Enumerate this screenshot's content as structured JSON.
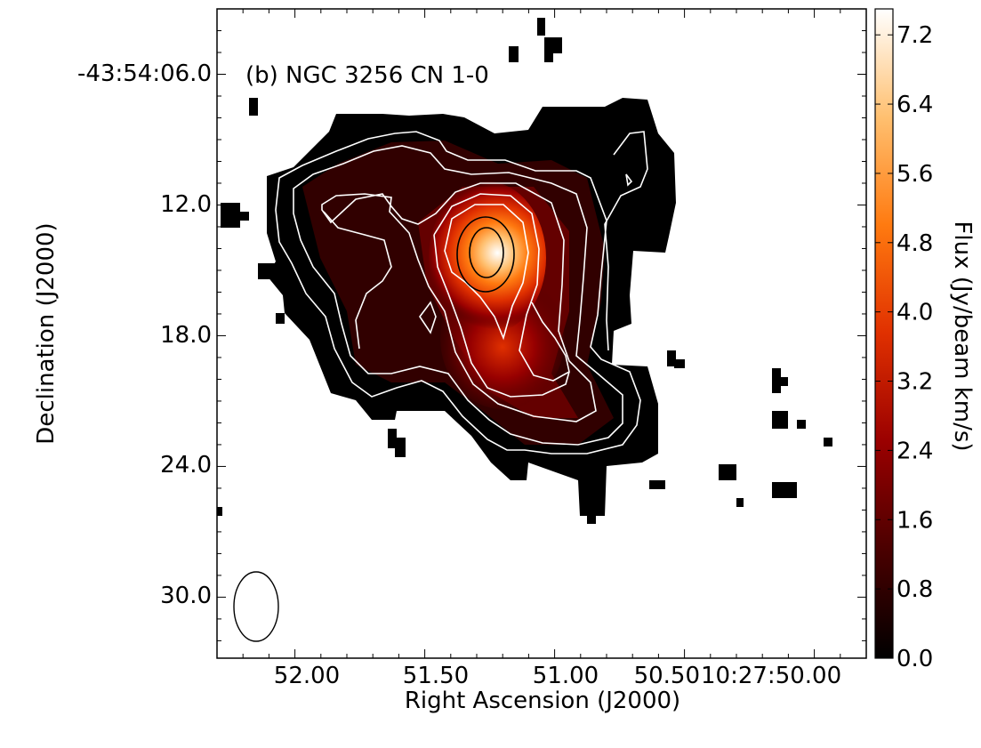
{
  "chart_data": {
    "type": "heatmap",
    "title": "(b) NGC 3256 CN 1-0",
    "xlabel": "Right Ascension (J2000)",
    "ylabel": "Declination (J2000)",
    "x_tick_labels": [
      "52.00",
      "51.50",
      "51.00",
      "50.50",
      "10:27:50.00"
    ],
    "y_tick_labels": [
      "-43:54:06.0",
      "12.0",
      "18.0",
      "24.0",
      "30.0"
    ],
    "xlim_seconds_of_RA": [
      52.3,
      49.8
    ],
    "ylim_arcsec_offset": [
      32.8,
      3.0
    ],
    "x_tick_values": [
      52.0,
      51.5,
      51.0,
      50.5,
      50.0
    ],
    "y_tick_values": [
      6.0,
      12.0,
      18.0,
      24.0,
      30.0
    ],
    "colorbar": {
      "label": "Flux (Jy/beam km/s)",
      "range": [
        0.0,
        7.5
      ],
      "tick_labels": [
        "0.0",
        "0.8",
        "1.6",
        "2.4",
        "3.2",
        "4.0",
        "4.8",
        "5.6",
        "6.4",
        "7.2"
      ],
      "tick_values": [
        0.0,
        0.8,
        1.6,
        2.4,
        3.2,
        4.0,
        4.8,
        5.6,
        6.4,
        7.2
      ],
      "colormap": "gist_heat",
      "colors": [
        "#000000",
        "#4a0000",
        "#9a0000",
        "#e03000",
        "#ff7a10",
        "#ffc070",
        "#ffffff"
      ]
    },
    "peak": {
      "ra_sec": 51.22,
      "dec_offset": 14.2,
      "flux": 7.5
    },
    "beam": {
      "ra_sec": 52.13,
      "dec_offset": 30.6
    },
    "contour_colors": {
      "outer": "#ffffff",
      "inner": "#000000"
    },
    "grid": false
  }
}
